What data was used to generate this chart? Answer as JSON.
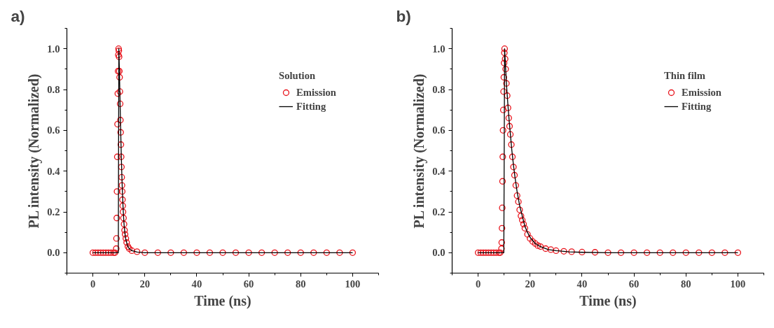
{
  "chart_data": [
    {
      "type": "line",
      "title": "a)",
      "xlabel": "Time (ns)",
      "ylabel": "PL intensity (Normalized)",
      "legend_title": "Solution",
      "legend": "top right",
      "grid": false,
      "xlim": [
        -10,
        110
      ],
      "ylim": [
        -0.1,
        1.1
      ],
      "xticks": [
        0,
        20,
        40,
        60,
        80,
        100
      ],
      "yticks": [
        {
          "value": 0,
          "label": "0.0"
        },
        {
          "value": 0.2,
          "label": "0.2"
        },
        {
          "value": 0.4,
          "label": "0.4"
        },
        {
          "value": 0.6,
          "label": "0.6"
        },
        {
          "value": 0.8,
          "label": "0.8"
        },
        {
          "value": 1,
          "label": "1.0"
        }
      ],
      "series": [
        {
          "name": "Emission",
          "type": "scatter",
          "color": "#e8141c",
          "x": [
            0,
            1,
            2,
            3,
            4,
            5,
            6,
            7,
            8,
            8.5,
            9.0,
            9.1,
            9.2,
            9.3,
            9.4,
            9.5,
            9.6,
            9.7,
            9.8,
            9.9,
            10.0,
            10.1,
            10.2,
            10.3,
            10.4,
            10.5,
            10.6,
            10.7,
            10.8,
            10.9,
            11.0,
            11.1,
            11.2,
            11.3,
            11.4,
            11.5,
            11.6,
            11.8,
            12.0,
            12.2,
            12.4,
            12.7,
            13.0,
            13.5,
            14,
            15,
            17,
            20,
            25,
            30,
            35,
            40,
            45,
            50,
            55,
            60,
            65,
            70,
            75,
            80,
            85,
            90,
            95,
            100
          ],
          "values": [
            0,
            0,
            0,
            0,
            0,
            0,
            0,
            0,
            0,
            0,
            0.02,
            0.07,
            0.17,
            0.3,
            0.47,
            0.63,
            0.78,
            0.89,
            0.97,
            1.0,
            0.99,
            0.96,
            0.89,
            0.86,
            0.79,
            0.73,
            0.65,
            0.59,
            0.53,
            0.47,
            0.42,
            0.37,
            0.33,
            0.3,
            0.26,
            0.23,
            0.2,
            0.17,
            0.14,
            0.11,
            0.09,
            0.07,
            0.05,
            0.03,
            0.02,
            0.01,
            0.005,
            0,
            0,
            0,
            0,
            0,
            0,
            0,
            0,
            0,
            0,
            0,
            0,
            0,
            0,
            0,
            0,
            0
          ]
        },
        {
          "name": "Fitting",
          "color": "#000000",
          "x": [
            0,
            9.8,
            10.0,
            10.2,
            10.4,
            10.6,
            10.8,
            11.0,
            11.2,
            11.4,
            11.6,
            11.8,
            12.0,
            12.3,
            12.6,
            13.0,
            13.5,
            14,
            15,
            17,
            20,
            100
          ],
          "values": [
            0,
            0,
            1.0,
            0.9,
            0.78,
            0.66,
            0.55,
            0.45,
            0.36,
            0.29,
            0.23,
            0.18,
            0.14,
            0.1,
            0.07,
            0.05,
            0.03,
            0.02,
            0.01,
            0.003,
            0,
            0
          ]
        }
      ]
    },
    {
      "type": "line",
      "title": "b)",
      "xlabel": "Time (ns)",
      "ylabel": "PL intensity (Normalized)",
      "legend_title": "Thin film",
      "legend": "top right",
      "grid": false,
      "xlim": [
        -10,
        110
      ],
      "ylim": [
        -0.1,
        1.1
      ],
      "xticks": [
        0,
        20,
        40,
        60,
        80,
        100
      ],
      "yticks": [
        {
          "value": 0,
          "label": "0.0"
        },
        {
          "value": 0.2,
          "label": "0.2"
        },
        {
          "value": 0.4,
          "label": "0.4"
        },
        {
          "value": 0.6,
          "label": "0.6"
        },
        {
          "value": 0.8,
          "label": "0.8"
        },
        {
          "value": 1,
          "label": "1.0"
        }
      ],
      "series": [
        {
          "name": "Emission",
          "type": "scatter",
          "color": "#e8141c",
          "x": [
            0,
            1,
            2,
            3,
            4,
            5,
            6,
            7,
            8,
            8.5,
            9.0,
            9.1,
            9.2,
            9.3,
            9.4,
            9.5,
            9.6,
            9.7,
            9.8,
            9.9,
            10.0,
            10.1,
            10.2,
            10.4,
            10.6,
            10.9,
            11.2,
            11.5,
            11.8,
            12.1,
            12.4,
            12.8,
            13.2,
            13.6,
            14,
            14.5,
            15,
            15.5,
            16,
            16.5,
            17,
            17.5,
            18,
            19,
            20,
            21,
            22,
            23,
            24,
            26,
            28,
            30,
            33,
            36,
            40,
            45,
            50,
            55,
            60,
            65,
            70,
            75,
            80,
            85,
            90,
            95,
            100
          ],
          "values": [
            0,
            0,
            0,
            0,
            0,
            0,
            0,
            0,
            0,
            0,
            0.02,
            0.05,
            0.12,
            0.22,
            0.35,
            0.47,
            0.6,
            0.7,
            0.79,
            0.86,
            0.93,
            0.98,
            1.0,
            0.95,
            0.9,
            0.83,
            0.77,
            0.71,
            0.66,
            0.62,
            0.58,
            0.53,
            0.47,
            0.42,
            0.38,
            0.33,
            0.28,
            0.25,
            0.21,
            0.18,
            0.16,
            0.14,
            0.12,
            0.09,
            0.07,
            0.055,
            0.045,
            0.035,
            0.03,
            0.02,
            0.015,
            0.01,
            0.007,
            0.005,
            0.003,
            0.002,
            0,
            0,
            0,
            0,
            0,
            0,
            0,
            0,
            0,
            0,
            0
          ]
        },
        {
          "name": "Fitting",
          "color": "#000000",
          "x": [
            0,
            9.9,
            10.2,
            10.6,
            11.0,
            11.5,
            12.0,
            12.5,
            13.0,
            13.6,
            14.2,
            15,
            16,
            17,
            18,
            19,
            20,
            22,
            24,
            27,
            30,
            35,
            40,
            50,
            100
          ],
          "values": [
            0,
            0,
            1.0,
            0.9,
            0.81,
            0.72,
            0.64,
            0.57,
            0.5,
            0.43,
            0.37,
            0.3,
            0.23,
            0.18,
            0.13,
            0.1,
            0.075,
            0.045,
            0.03,
            0.015,
            0.01,
            0.004,
            0.002,
            0,
            0
          ]
        }
      ]
    }
  ]
}
